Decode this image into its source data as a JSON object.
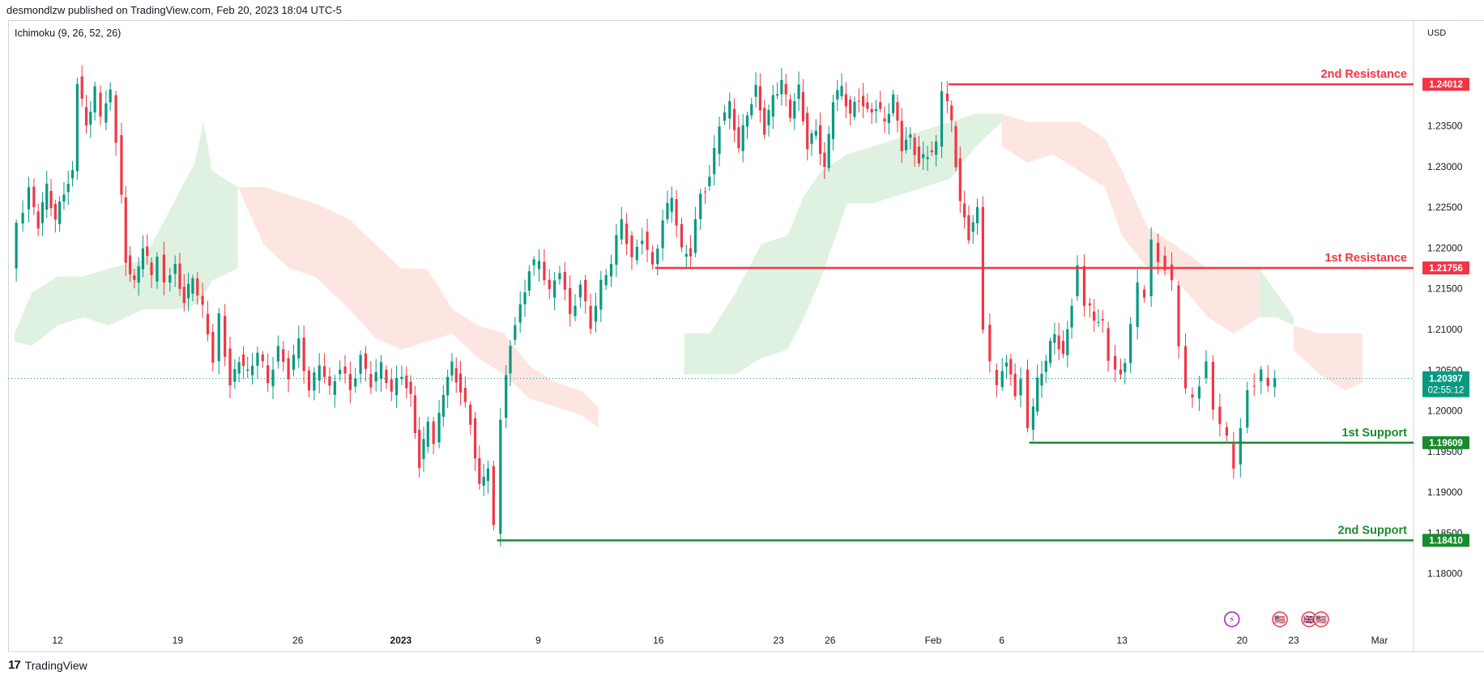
{
  "header": {
    "published_by": "desmondlzw published on TradingView.com, Feb 20, 2023 18:04 UTC-5",
    "indicator": "Ichimoku (9, 26, 52, 26)"
  },
  "footer": {
    "brand": "TradingView",
    "logo_mark": "17"
  },
  "colors": {
    "resistance": "#f23645",
    "support": "#1b8a2e",
    "bull": "#089981",
    "bear": "#f23645",
    "cloud_bull": "#d9eedb",
    "cloud_bear": "#fde0dd",
    "current_price": "#089981"
  },
  "chart_data": {
    "type": "candlestick",
    "currency": "USD",
    "y_range": [
      1.175,
      1.2455
    ],
    "y_ticks": [
      "1.18000",
      "1.18500",
      "1.19000",
      "1.19500",
      "1.20000",
      "1.20500",
      "1.21000",
      "1.21500",
      "1.22000",
      "1.22500",
      "1.23000",
      "1.23500"
    ],
    "x_ticks": [
      {
        "label": "12",
        "day": 0
      },
      {
        "label": "19",
        "day": 7
      },
      {
        "label": "26",
        "day": 14
      },
      {
        "label": "2023",
        "day": 20
      },
      {
        "label": "9",
        "day": 28
      },
      {
        "label": "16",
        "day": 35
      },
      {
        "label": "23",
        "day": 42
      },
      {
        "label": "26",
        "day": 45
      },
      {
        "label": "Feb",
        "day": 51
      },
      {
        "label": "6",
        "day": 55
      },
      {
        "label": "13",
        "day": 62
      },
      {
        "label": "20",
        "day": 69
      },
      {
        "label": "23",
        "day": 72
      },
      {
        "label": "Mar",
        "day": 77
      }
    ],
    "levels": [
      {
        "name": "2nd Resistance",
        "value": 1.24012,
        "value_label": "1.24012",
        "kind": "resistance",
        "start_day": 51.9
      },
      {
        "name": "1st Resistance",
        "value": 1.21756,
        "value_label": "1.21756",
        "kind": "resistance",
        "start_day": 34.8
      },
      {
        "name": "1st Support",
        "value": 1.19609,
        "value_label": "1.19609",
        "kind": "support",
        "start_day": 56.6
      },
      {
        "name": "2nd Support",
        "value": 1.1841,
        "value_label": "1.18410",
        "kind": "support",
        "start_day": 25.6
      }
    ],
    "current_price": {
      "value": 1.20397,
      "value_label": "1.20397",
      "countdown": "02:55:12"
    },
    "price_path": [
      [
        -2.6,
        1.2175
      ],
      [
        -2.2,
        1.2225
      ],
      [
        -1.5,
        1.227
      ],
      [
        -1.0,
        1.223
      ],
      [
        -0.5,
        1.2275
      ],
      [
        0.0,
        1.2235
      ],
      [
        0.5,
        1.227
      ],
      [
        1.0,
        1.229
      ],
      [
        1.3,
        1.2405
      ],
      [
        1.8,
        1.235
      ],
      [
        2.3,
        1.2395
      ],
      [
        2.7,
        1.236
      ],
      [
        3.2,
        1.239
      ],
      [
        3.6,
        1.2335
      ],
      [
        4.1,
        1.2185
      ],
      [
        4.6,
        1.2155
      ],
      [
        5.1,
        1.2205
      ],
      [
        5.6,
        1.2165
      ],
      [
        6.0,
        1.2195
      ],
      [
        6.4,
        1.2155
      ],
      [
        7.0,
        1.2175
      ],
      [
        7.5,
        1.2135
      ],
      [
        8.0,
        1.2165
      ],
      [
        8.6,
        1.2125
      ],
      [
        9.2,
        1.2065
      ],
      [
        9.6,
        1.2115
      ],
      [
        10.2,
        1.203
      ],
      [
        10.7,
        1.2065
      ],
      [
        11.2,
        1.2045
      ],
      [
        11.8,
        1.2075
      ],
      [
        12.4,
        1.2035
      ],
      [
        13.0,
        1.2075
      ],
      [
        13.6,
        1.2045
      ],
      [
        14.2,
        1.2085
      ],
      [
        14.8,
        1.2025
      ],
      [
        15.4,
        1.206
      ],
      [
        16.0,
        1.2025
      ],
      [
        16.6,
        1.2055
      ],
      [
        17.2,
        1.2025
      ],
      [
        17.8,
        1.2065
      ],
      [
        18.4,
        1.2035
      ],
      [
        19.0,
        1.2055
      ],
      [
        19.6,
        1.2025
      ],
      [
        20.2,
        1.2045
      ],
      [
        20.7,
        1.2015
      ],
      [
        21.2,
        1.1935
      ],
      [
        21.7,
        1.1985
      ],
      [
        22.1,
        1.1965
      ],
      [
        22.6,
        1.2025
      ],
      [
        23.1,
        1.2055
      ],
      [
        23.6,
        1.2025
      ],
      [
        24.2,
        1.1985
      ],
      [
        24.7,
        1.1905
      ],
      [
        25.2,
        1.1935
      ],
      [
        25.6,
        1.1855
      ],
      [
        26.0,
        1.1995
      ],
      [
        26.5,
        1.2085
      ],
      [
        27.1,
        1.2125
      ],
      [
        27.6,
        1.2175
      ],
      [
        28.2,
        1.2185
      ],
      [
        28.8,
        1.2145
      ],
      [
        29.4,
        1.2175
      ],
      [
        30.0,
        1.2115
      ],
      [
        30.6,
        1.2155
      ],
      [
        31.2,
        1.2105
      ],
      [
        31.8,
        1.2155
      ],
      [
        32.4,
        1.2185
      ],
      [
        33.0,
        1.2235
      ],
      [
        33.6,
        1.2185
      ],
      [
        34.2,
        1.2215
      ],
      [
        34.8,
        1.2175
      ],
      [
        35.4,
        1.2235
      ],
      [
        35.9,
        1.2265
      ],
      [
        36.5,
        1.2195
      ],
      [
        37.0,
        1.2195
      ],
      [
        37.6,
        1.2265
      ],
      [
        38.1,
        1.2285
      ],
      [
        38.7,
        1.2355
      ],
      [
        39.3,
        1.2375
      ],
      [
        39.8,
        1.2325
      ],
      [
        40.3,
        1.2365
      ],
      [
        40.8,
        1.2395
      ],
      [
        41.3,
        1.2345
      ],
      [
        41.8,
        1.2385
      ],
      [
        42.3,
        1.2405
      ],
      [
        42.8,
        1.2365
      ],
      [
        43.3,
        1.2395
      ],
      [
        43.8,
        1.2325
      ],
      [
        44.3,
        1.2345
      ],
      [
        44.8,
        1.2295
      ],
      [
        45.3,
        1.2385
      ],
      [
        45.8,
        1.2395
      ],
      [
        46.3,
        1.2365
      ],
      [
        46.8,
        1.2385
      ],
      [
        47.3,
        1.2365
      ],
      [
        47.8,
        1.2375
      ],
      [
        48.3,
        1.2355
      ],
      [
        48.8,
        1.2385
      ],
      [
        49.3,
        1.2325
      ],
      [
        49.8,
        1.2335
      ],
      [
        50.3,
        1.2305
      ],
      [
        50.8,
        1.2315
      ],
      [
        51.3,
        1.2325
      ],
      [
        51.7,
        1.2395
      ],
      [
        52.2,
        1.2355
      ],
      [
        52.7,
        1.2255
      ],
      [
        53.2,
        1.2215
      ],
      [
        53.7,
        1.2245
      ],
      [
        54.1,
        1.2105
      ],
      [
        54.5,
        1.2055
      ],
      [
        54.9,
        1.2035
      ],
      [
        55.4,
        1.2065
      ],
      [
        55.9,
        1.2015
      ],
      [
        56.3,
        1.2045
      ],
      [
        56.7,
        1.1975
      ],
      [
        57.2,
        1.2035
      ],
      [
        57.7,
        1.2065
      ],
      [
        58.2,
        1.2095
      ],
      [
        58.7,
        1.2065
      ],
      [
        59.2,
        1.2135
      ],
      [
        59.6,
        1.2175
      ],
      [
        60.0,
        1.2135
      ],
      [
        60.5,
        1.2115
      ],
      [
        61.0,
        1.2105
      ],
      [
        61.4,
        1.2065
      ],
      [
        61.8,
        1.2045
      ],
      [
        62.3,
        1.2055
      ],
      [
        62.7,
        1.2105
      ],
      [
        63.1,
        1.2155
      ],
      [
        63.5,
        1.2145
      ],
      [
        63.9,
        1.2205
      ],
      [
        64.3,
        1.2185
      ],
      [
        64.7,
        1.2175
      ],
      [
        65.1,
        1.2155
      ],
      [
        65.5,
        1.2085
      ],
      [
        65.9,
        1.2025
      ],
      [
        66.3,
        1.2015
      ],
      [
        66.7,
        1.2035
      ],
      [
        67.1,
        1.2055
      ],
      [
        67.5,
        1.2005
      ],
      [
        67.9,
        1.1985
      ],
      [
        68.3,
        1.1965
      ],
      [
        68.7,
        1.1935
      ],
      [
        69.1,
        1.1975
      ],
      [
        69.5,
        1.2025
      ],
      [
        69.9,
        1.2035
      ],
      [
        70.3,
        1.2045
      ],
      [
        70.7,
        1.2035
      ],
      [
        71.1,
        1.204
      ]
    ],
    "cloud_segments": [
      {
        "kind": "bull",
        "points": [
          [
            -2.5,
            1.2085,
            1.2095
          ],
          [
            -1.5,
            1.208,
            1.2145
          ],
          [
            0.0,
            1.2105,
            1.2165
          ],
          [
            1.5,
            1.2115,
            1.2165
          ],
          [
            3.0,
            1.2105,
            1.2175
          ],
          [
            5.0,
            1.2125,
            1.2185
          ],
          [
            7.0,
            1.2125,
            1.2265
          ],
          [
            8.0,
            1.213,
            1.2305
          ],
          [
            8.5,
            1.214,
            1.2355
          ],
          [
            9.0,
            1.216,
            1.2295
          ],
          [
            10.5,
            1.2175,
            1.2275
          ]
        ]
      },
      {
        "kind": "bear",
        "points": [
          [
            10.5,
            1.2275,
            1.2275
          ],
          [
            12.0,
            1.2205,
            1.2275
          ],
          [
            13.5,
            1.2175,
            1.2265
          ],
          [
            15.0,
            1.2165,
            1.2255
          ],
          [
            17.0,
            1.2125,
            1.2235
          ],
          [
            18.5,
            1.209,
            1.2205
          ],
          [
            20.0,
            1.2075,
            1.2175
          ],
          [
            21.5,
            1.2085,
            1.2175
          ],
          [
            23.0,
            1.2095,
            1.2125
          ],
          [
            24.5,
            1.2065,
            1.2105
          ],
          [
            26.0,
            1.2045,
            1.2095
          ],
          [
            27.5,
            1.2015,
            1.2055
          ],
          [
            29.0,
            1.2005,
            1.2035
          ],
          [
            30.5,
            1.1995,
            1.2025
          ],
          [
            31.5,
            1.198,
            1.2005
          ]
        ]
      },
      {
        "kind": "bull",
        "points": [
          [
            36.5,
            1.2045,
            1.2095
          ],
          [
            38.0,
            1.2045,
            1.2095
          ],
          [
            39.5,
            1.2045,
            1.2145
          ],
          [
            41.0,
            1.2065,
            1.2205
          ],
          [
            42.5,
            1.2075,
            1.2215
          ],
          [
            43.5,
            1.2115,
            1.2265
          ],
          [
            44.5,
            1.2165,
            1.2295
          ],
          [
            46.0,
            1.2255,
            1.2315
          ],
          [
            47.5,
            1.2255,
            1.2325
          ],
          [
            49.0,
            1.2265,
            1.2335
          ],
          [
            50.5,
            1.2275,
            1.2345
          ],
          [
            52.0,
            1.2285,
            1.2355
          ],
          [
            53.5,
            1.2325,
            1.2365
          ],
          [
            55.0,
            1.2355,
            1.2365
          ]
        ]
      },
      {
        "kind": "bear",
        "points": [
          [
            55.0,
            1.2325,
            1.2365
          ],
          [
            56.5,
            1.2305,
            1.2355
          ],
          [
            58.0,
            1.2315,
            1.2355
          ],
          [
            59.5,
            1.2295,
            1.2355
          ],
          [
            61.0,
            1.2275,
            1.2335
          ],
          [
            62.0,
            1.2215,
            1.2295
          ],
          [
            63.5,
            1.2175,
            1.2225
          ],
          [
            65.0,
            1.2165,
            1.2205
          ],
          [
            67.0,
            1.2115,
            1.2175
          ],
          [
            68.5,
            1.2095,
            1.2175
          ],
          [
            70.0,
            1.2115,
            1.2175
          ]
        ]
      },
      {
        "kind": "bull",
        "points": [
          [
            70.0,
            1.2115,
            1.2175
          ],
          [
            71.0,
            1.2115,
            1.2145
          ],
          [
            72.0,
            1.2105,
            1.2115
          ]
        ]
      },
      {
        "kind": "bear",
        "points": [
          [
            72.0,
            1.2075,
            1.2105
          ],
          [
            73.5,
            1.2045,
            1.2095
          ],
          [
            75.0,
            1.2025,
            1.2095
          ],
          [
            76.0,
            1.2035,
            1.2095
          ]
        ]
      }
    ],
    "event_markers": [
      {
        "name": "flash",
        "day": 68.4,
        "symbol": "⚡"
      },
      {
        "name": "us-flag",
        "day": 71.2,
        "symbol": "🇺🇸"
      },
      {
        "name": "gb-flag",
        "day": 72.9,
        "symbol": "🇬🇧"
      },
      {
        "name": "us-flag-2",
        "day": 73.6,
        "symbol": "🇺🇸"
      }
    ]
  }
}
